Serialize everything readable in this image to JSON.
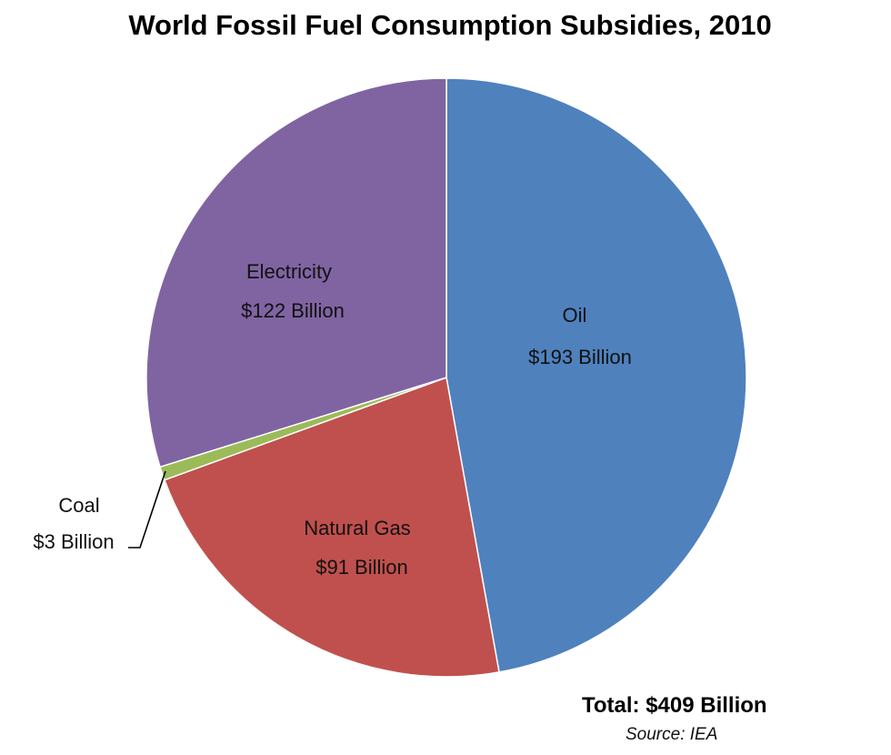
{
  "chart_data": {
    "type": "pie",
    "title": "World Fossil Fuel Consumption Subsidies, 2010",
    "slices": [
      {
        "name": "Oil",
        "value": 193,
        "value_label": "$193 Billion",
        "color": "#4F81BD"
      },
      {
        "name": "Natural Gas",
        "value": 91,
        "value_label": "$91 Billion",
        "color": "#C0504D"
      },
      {
        "name": "Coal",
        "value": 3,
        "value_label": "$3 Billion",
        "color": "#9BBB59"
      },
      {
        "name": "Electricity",
        "value": 122,
        "value_label": "$122 Billion",
        "color": "#8064A2"
      }
    ],
    "start_angle": "12 o'clock",
    "direction": "clockwise",
    "total_label": "Total: $409 Billion",
    "source_label": "Source: IEA",
    "legend": "none"
  }
}
